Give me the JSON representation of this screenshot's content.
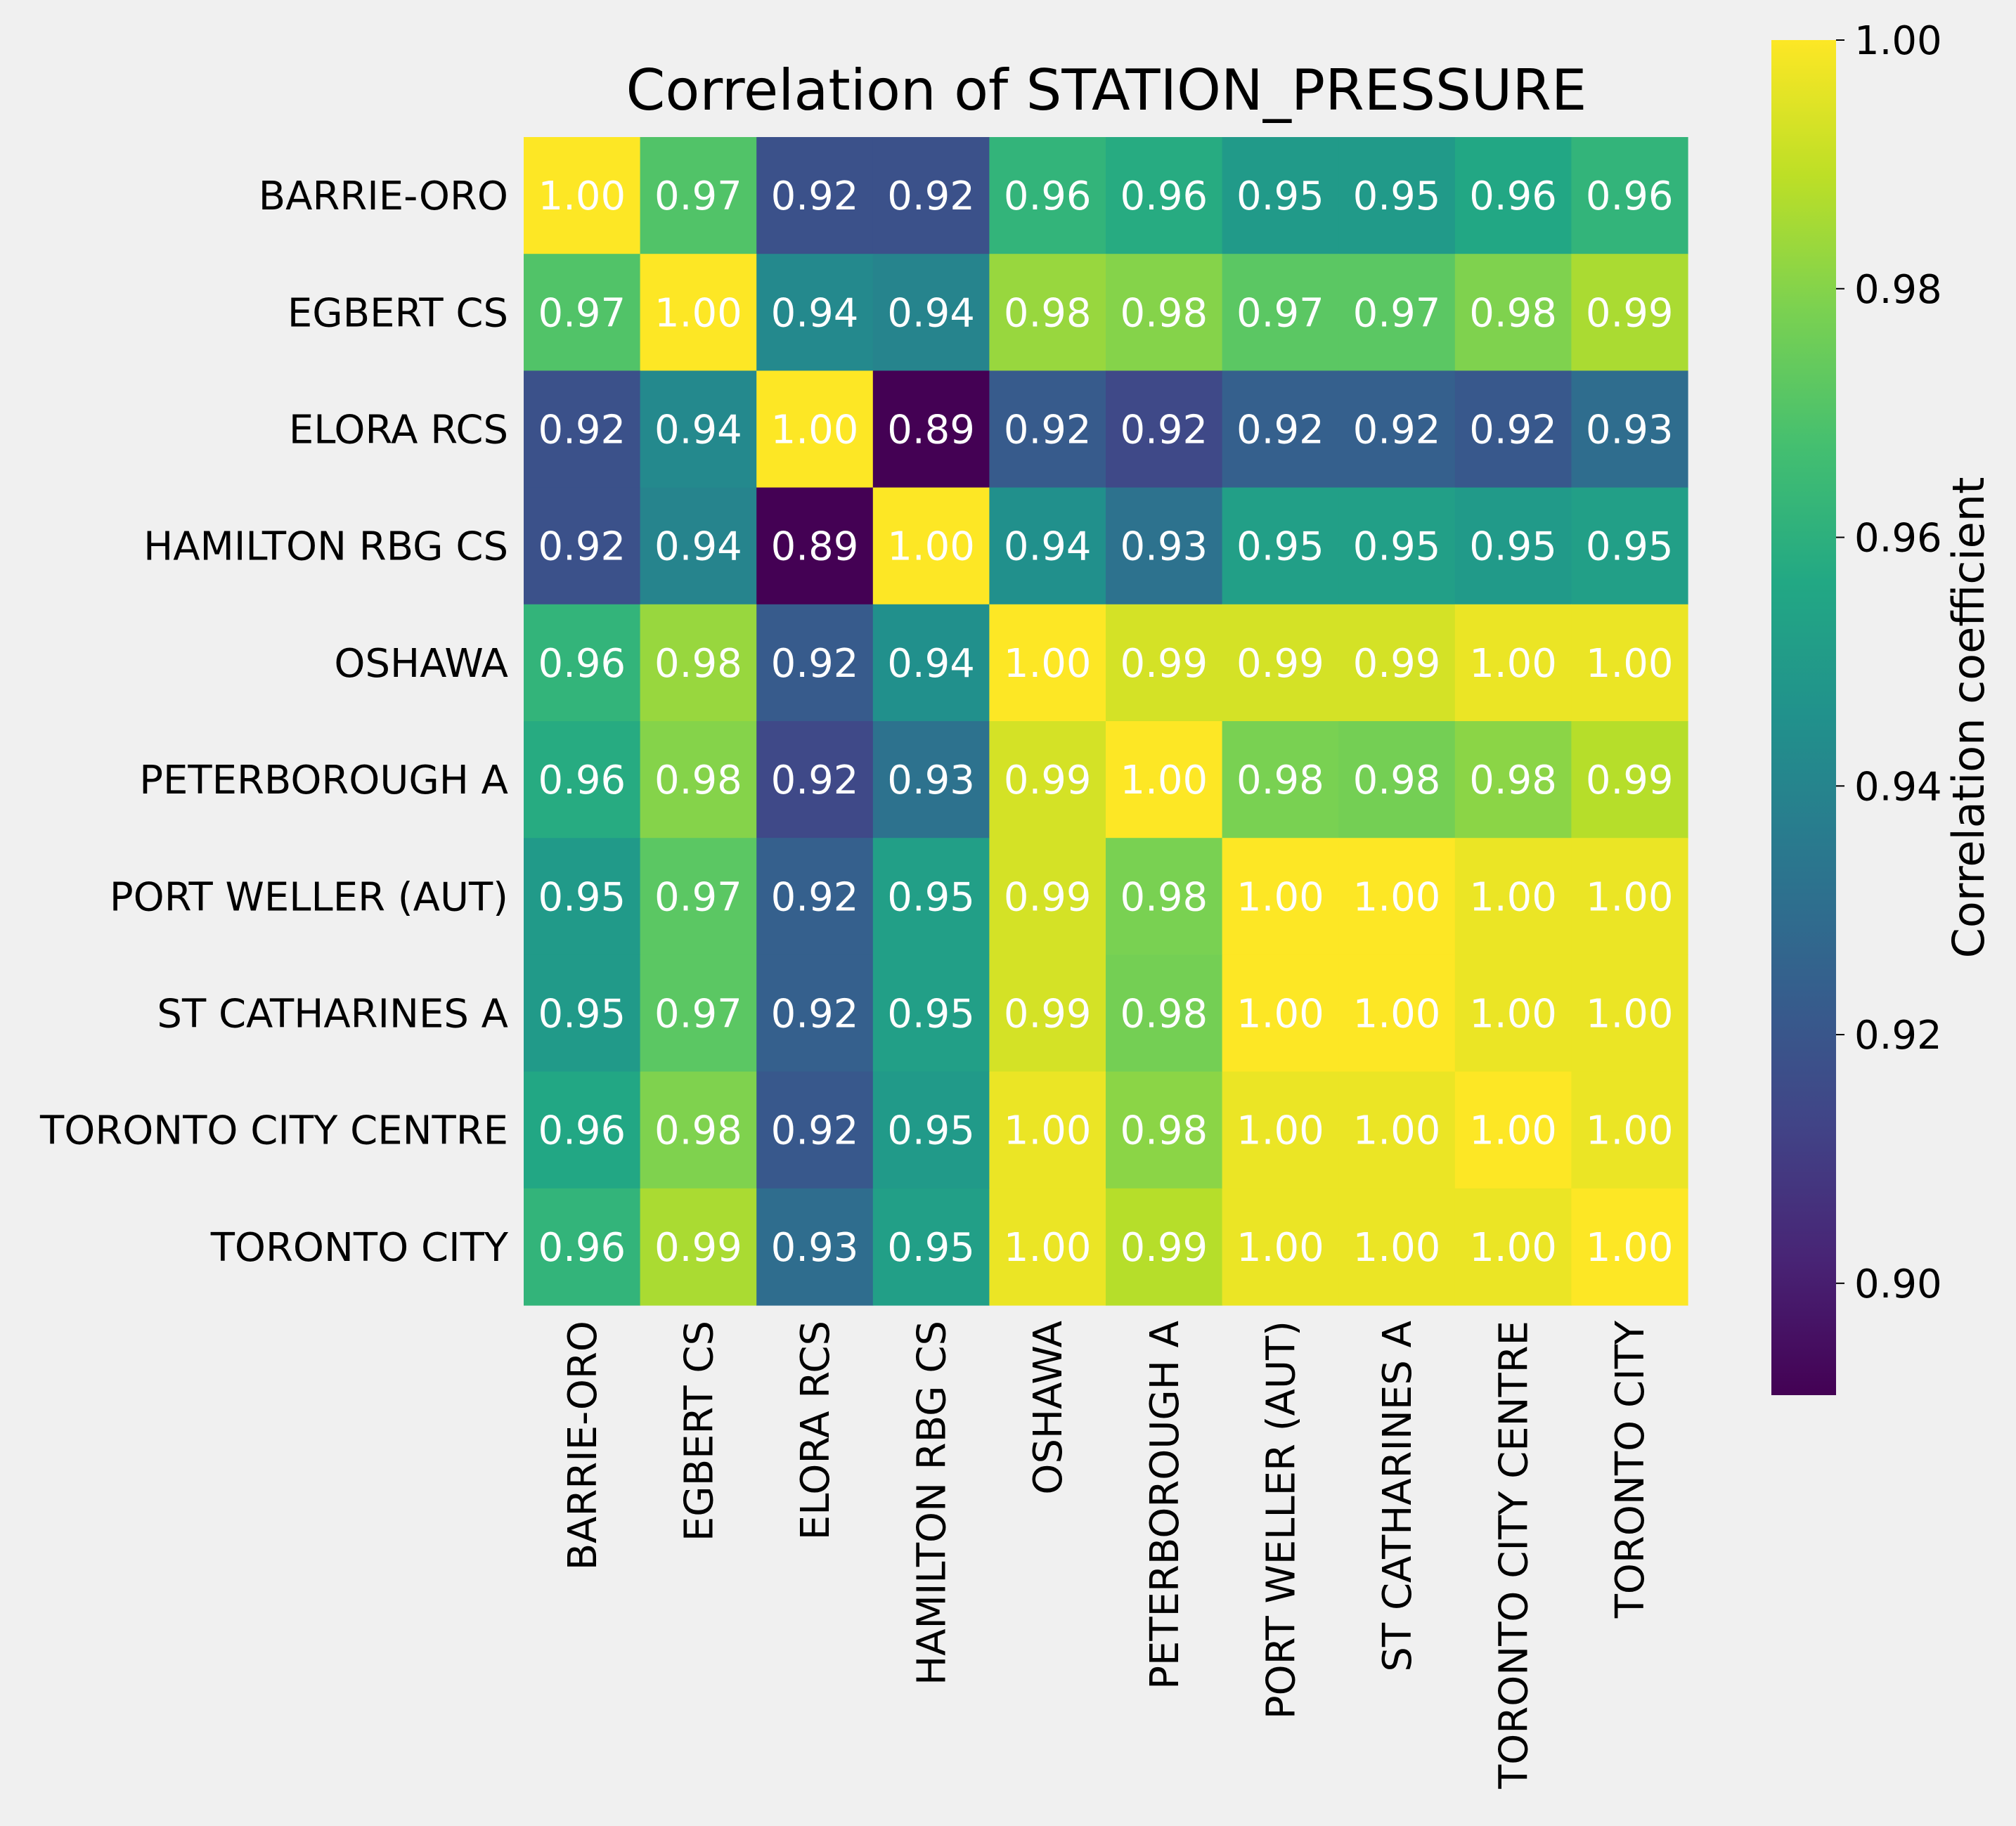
{
  "chart_data": {
    "type": "heatmap",
    "title": "Correlation of STATION_PRESSURE",
    "rows": [
      "BARRIE-ORO",
      "EGBERT CS",
      "ELORA RCS",
      "HAMILTON RBG CS",
      "OSHAWA",
      "PETERBOROUGH A",
      "PORT WELLER (AUT)",
      "ST CATHARINES A",
      "TORONTO CITY CENTRE",
      "TORONTO CITY"
    ],
    "columns": [
      "BARRIE-ORO",
      "EGBERT CS",
      "ELORA RCS",
      "HAMILTON RBG CS",
      "OSHAWA",
      "PETERBOROUGH A",
      "PORT WELLER (AUT)",
      "ST CATHARINES A",
      "TORONTO CITY CENTRE",
      "TORONTO CITY"
    ],
    "values": [
      [
        1.0,
        0.97,
        0.918,
        0.918,
        0.962,
        0.958,
        0.95,
        0.95,
        0.956,
        0.962
      ],
      [
        0.97,
        1.0,
        0.942,
        0.94,
        0.983,
        0.98,
        0.972,
        0.972,
        0.979,
        0.986
      ],
      [
        0.918,
        0.942,
        1.0,
        0.891,
        0.922,
        0.915,
        0.924,
        0.924,
        0.921,
        0.93
      ],
      [
        0.918,
        0.94,
        0.891,
        1.0,
        0.945,
        0.932,
        0.952,
        0.952,
        0.95,
        0.952
      ],
      [
        0.962,
        0.983,
        0.922,
        0.945,
        1.0,
        0.993,
        0.993,
        0.993,
        0.997,
        0.997
      ],
      [
        0.958,
        0.98,
        0.915,
        0.932,
        0.993,
        1.0,
        0.978,
        0.977,
        0.981,
        0.988
      ],
      [
        0.95,
        0.972,
        0.924,
        0.952,
        0.993,
        0.978,
        1.0,
        1.0,
        0.997,
        0.997
      ],
      [
        0.95,
        0.972,
        0.924,
        0.952,
        0.993,
        0.977,
        1.0,
        1.0,
        0.997,
        0.997
      ],
      [
        0.956,
        0.979,
        0.921,
        0.95,
        0.997,
        0.981,
        0.997,
        0.997,
        1.0,
        0.997
      ],
      [
        0.962,
        0.986,
        0.93,
        0.952,
        0.997,
        0.988,
        0.997,
        0.997,
        0.997,
        1.0
      ]
    ],
    "value_format": "2 decimals",
    "colormap": "viridis",
    "vmin": 0.891,
    "vmax": 1.0,
    "colorbar": {
      "label": "Correlation coefficient",
      "ticks": [
        0.9,
        0.92,
        0.94,
        0.96,
        0.98,
        1.0
      ],
      "tick_labels": [
        "0.90",
        "0.92",
        "0.94",
        "0.96",
        "0.98",
        "1.00"
      ]
    },
    "annotation_color": "#ffffff",
    "background": "#f0f0f0",
    "grid": false
  }
}
